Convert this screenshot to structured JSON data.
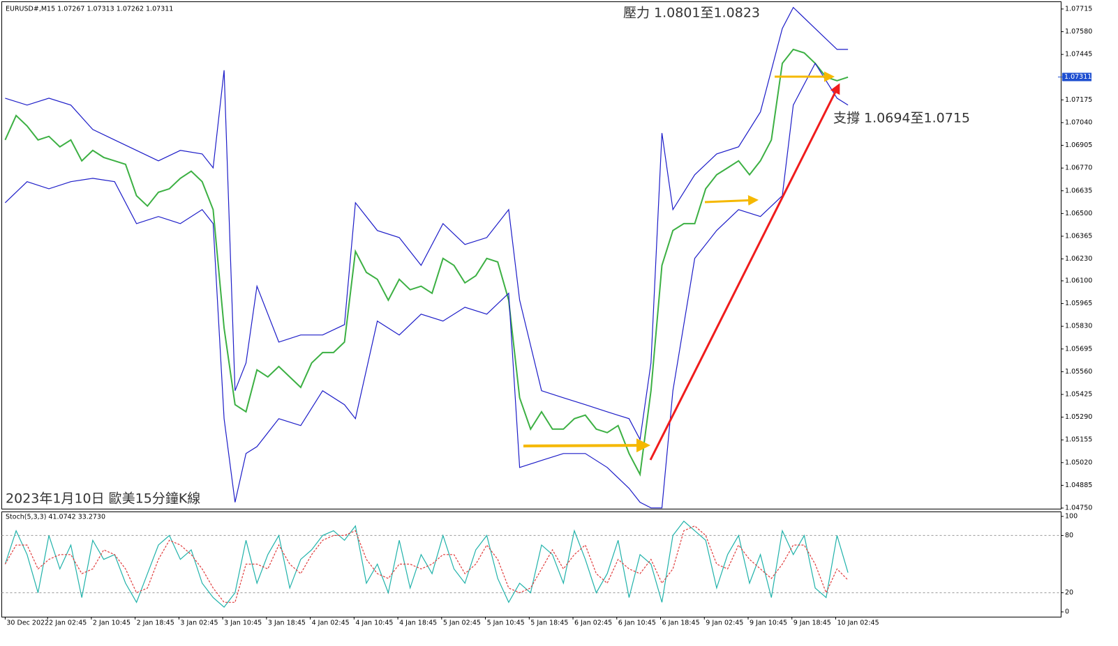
{
  "chart_data": [
    {
      "type": "line",
      "title": "EURUSD#,M15  1.07267 1.07313 1.07262 1.07311",
      "annotations": [
        "壓力 1.0801至1.0823",
        "支撐 1.0694至1.0715",
        "2023年1月10日 歐美15分鐘K線"
      ],
      "xlim": [
        -2.5,
        771.5
      ],
      "ylim": [
        1.04746,
        1.07756
      ],
      "yticks": [
        1.07715,
        {
          "value": 1.0758,
          "label": "1.07580"
        },
        1.07445,
        1.07175,
        {
          "value": 1.0704,
          "label": "1.07040"
        },
        1.06905,
        {
          "value": 1.0677,
          "label": "1.06770"
        },
        1.06635,
        {
          "value": 1.065,
          "label": "1.06500"
        },
        1.06365,
        {
          "value": 1.0623,
          "label": "1.06230"
        },
        {
          "value": 1.061,
          "label": "1.06100"
        },
        1.05965,
        {
          "value": 1.0583,
          "label": "1.05830"
        },
        1.05695,
        {
          "value": 1.0556,
          "label": "1.05560"
        },
        1.05425,
        {
          "value": 1.0529,
          "label": "1.05290"
        },
        1.05155,
        {
          "value": 1.0502,
          "label": "1.05020"
        },
        1.04885,
        {
          "value": 1.0475,
          "label": "1.04750"
        }
      ],
      "last_price": 1.07311,
      "last_price_color": "#1f4fd0",
      "series": [
        {
          "color": "#3cb043",
          "x": [
            0,
            8,
            16,
            24,
            32,
            40,
            48,
            56,
            64,
            72,
            80,
            88,
            96,
            104,
            112,
            120,
            128,
            136,
            144,
            152,
            160,
            168,
            176,
            184,
            192,
            200,
            208,
            216,
            224,
            232,
            240,
            248,
            256,
            264,
            272,
            280,
            288,
            296,
            304,
            312,
            320,
            328,
            336,
            344,
            352,
            360,
            368,
            376,
            384,
            392,
            400,
            408,
            416,
            424,
            432,
            440,
            448,
            456,
            464,
            472,
            480,
            488,
            496,
            504,
            512,
            520,
            528,
            536,
            544,
            552,
            560,
            568,
            576,
            584,
            592,
            600,
            608,
            616
          ],
          "values": [
            1.06937,
            1.07082,
            1.0702,
            1.06937,
            1.06958,
            1.06896,
            1.06937,
            1.06813,
            1.06875,
            1.06833,
            1.06813,
            1.06792,
            1.06606,
            1.06544,
            1.06626,
            1.06647,
            1.06709,
            1.06751,
            1.06689,
            1.06523,
            1.05819,
            1.05364,
            1.05322,
            1.05571,
            1.05529,
            1.05591,
            1.05529,
            1.05467,
            1.05612,
            1.05674,
            1.05674,
            1.05736,
            1.06275,
            1.0615,
            1.06109,
            1.05985,
            1.06109,
            1.06047,
            1.06068,
            1.06026,
            1.06233,
            1.06192,
            1.06088,
            1.0613,
            1.06233,
            1.06212,
            1.05985,
            1.05405,
            1.05219,
            1.05322,
            1.05219,
            1.05219,
            1.05281,
            1.05302,
            1.05219,
            1.05198,
            1.0524,
            1.05074,
            1.0495,
            1.05447,
            1.06192,
            1.06399,
            1.0644,
            1.0644,
            1.06647,
            1.0673,
            1.06771,
            1.06813,
            1.0673,
            1.06813,
            1.06937,
            1.07392,
            1.07475,
            1.07454,
            1.07392,
            1.0731,
            1.07289,
            1.0731
          ]
        },
        {
          "color": "#1c1cc8",
          "x": [
            0,
            16,
            32,
            48,
            64,
            80,
            96,
            112,
            128,
            144,
            152,
            160,
            168,
            176,
            184,
            200,
            216,
            232,
            248,
            256,
            272,
            288,
            304,
            320,
            336,
            352,
            368,
            376,
            392,
            408,
            424,
            440,
            456,
            464,
            472,
            480,
            488,
            504,
            520,
            536,
            552,
            568,
            576,
            592,
            608,
            616
          ],
          "values": [
            1.07185,
            1.07144,
            1.07185,
            1.07144,
            1.06999,
            1.06937,
            1.06875,
            1.06813,
            1.06875,
            1.06854,
            1.06771,
            1.07351,
            1.05447,
            1.05612,
            1.06068,
            1.05736,
            1.05778,
            1.05778,
            1.0584,
            1.06564,
            1.06399,
            1.06357,
            1.06192,
            1.0644,
            1.06316,
            1.06357,
            1.06523,
            1.05985,
            1.05447,
            1.05405,
            1.05364,
            1.05322,
            1.05281,
            1.05157,
            1.05612,
            1.06978,
            1.06523,
            1.0673,
            1.06854,
            1.06896,
            1.07103,
            1.07599,
            1.07724,
            1.07599,
            1.07475,
            1.07475
          ]
        },
        {
          "color": "#1c1cc8",
          "x": [
            0,
            16,
            32,
            48,
            64,
            80,
            96,
            112,
            128,
            144,
            152,
            160,
            168,
            176,
            184,
            200,
            216,
            232,
            248,
            256,
            272,
            288,
            304,
            320,
            336,
            352,
            368,
            376,
            392,
            408,
            424,
            440,
            456,
            464,
            472,
            480,
            488,
            504,
            520,
            536,
            552,
            568,
            576,
            592,
            608,
            616
          ],
          "values": [
            1.06564,
            1.06689,
            1.06647,
            1.06689,
            1.06709,
            1.06689,
            1.0644,
            1.06482,
            1.0644,
            1.06523,
            1.0644,
            1.05281,
            1.04784,
            1.05074,
            1.05115,
            1.05281,
            1.0524,
            1.05447,
            1.05364,
            1.05281,
            1.05861,
            1.05778,
            1.05902,
            1.05861,
            1.05943,
            1.05902,
            1.06026,
            1.04991,
            1.05033,
            1.05074,
            1.05074,
            1.04991,
            1.04867,
            1.04784,
            1.04751,
            1.04751,
            1.05447,
            1.06233,
            1.06399,
            1.06523,
            1.06482,
            1.06606,
            1.07144,
            1.07392,
            1.07185,
            1.07144
          ]
        }
      ]
    },
    {
      "type": "line",
      "title": "Stoch(5,3,3) 41.0742 33.2730",
      "xlim": [
        -2.5,
        771.5
      ],
      "xticks": [
        {
          "value": 0,
          "label": "30 Dec 2022"
        },
        {
          "value": 31,
          "label": "2 Jan 02:45"
        },
        {
          "value": 63,
          "label": "2 Jan 10:45"
        },
        {
          "value": 95,
          "label": "2 Jan 18:45"
        },
        {
          "value": 127,
          "label": "3 Jan 02:45"
        },
        {
          "value": 159,
          "label": "3 Jan 10:45"
        },
        {
          "value": 191,
          "label": "3 Jan 18:45"
        },
        {
          "value": 223,
          "label": "4 Jan 02:45"
        },
        {
          "value": 255,
          "label": "4 Jan 10:45"
        },
        {
          "value": 287,
          "label": "4 Jan 18:45"
        },
        {
          "value": 319,
          "label": "5 Jan 02:45"
        },
        {
          "value": 351,
          "label": "5 Jan 10:45"
        },
        {
          "value": 383,
          "label": "5 Jan 18:45"
        },
        {
          "value": 415,
          "label": "6 Jan 02:45"
        },
        {
          "value": 447,
          "label": "6 Jan 10:45"
        },
        {
          "value": 479,
          "label": "6 Jan 18:45"
        },
        {
          "value": 511,
          "label": "9 Jan 02:45"
        },
        {
          "value": 543,
          "label": "9 Jan 10:45"
        },
        {
          "value": 575,
          "label": "9 Jan 18:45"
        },
        {
          "value": 607,
          "label": "10 Jan 02:45"
        }
      ],
      "ylim": [
        -5.1,
        104.4
      ],
      "yticks": [
        100,
        80,
        20,
        0
      ],
      "levels": [
        80,
        20
      ],
      "series": [
        {
          "color": "#20b2aa",
          "x": [
            0,
            8,
            16,
            24,
            32,
            40,
            48,
            56,
            64,
            72,
            80,
            88,
            96,
            104,
            112,
            120,
            128,
            136,
            144,
            152,
            160,
            168,
            176,
            184,
            192,
            200,
            208,
            216,
            224,
            232,
            240,
            248,
            256,
            264,
            272,
            280,
            288,
            296,
            304,
            312,
            320,
            328,
            336,
            344,
            352,
            360,
            368,
            376,
            384,
            392,
            400,
            408,
            416,
            424,
            432,
            440,
            448,
            456,
            464,
            472,
            480,
            488,
            496,
            504,
            512,
            520,
            528,
            536,
            544,
            552,
            560,
            568,
            576,
            584,
            592,
            600,
            608,
            616
          ],
          "values": [
            50,
            85,
            60,
            20,
            80,
            45,
            70,
            15,
            75,
            55,
            60,
            30,
            10,
            40,
            70,
            80,
            55,
            65,
            30,
            15,
            5,
            20,
            75,
            30,
            60,
            80,
            25,
            55,
            65,
            80,
            85,
            75,
            90,
            30,
            50,
            20,
            75,
            25,
            60,
            40,
            80,
            45,
            30,
            65,
            80,
            35,
            10,
            30,
            20,
            70,
            60,
            30,
            85,
            55,
            20,
            40,
            75,
            15,
            60,
            50,
            10,
            80,
            95,
            85,
            75,
            25,
            60,
            80,
            30,
            60,
            15,
            85,
            60,
            80,
            25,
            15,
            80,
            41.0742
          ]
        },
        {
          "color": "#e03c3c",
          "dashed": true,
          "x": [
            0,
            8,
            16,
            24,
            32,
            40,
            48,
            56,
            64,
            72,
            80,
            88,
            96,
            104,
            112,
            120,
            128,
            136,
            144,
            152,
            160,
            168,
            176,
            184,
            192,
            200,
            208,
            216,
            224,
            232,
            240,
            248,
            256,
            264,
            272,
            280,
            288,
            296,
            304,
            312,
            320,
            328,
            336,
            344,
            352,
            360,
            368,
            376,
            384,
            392,
            400,
            408,
            416,
            424,
            432,
            440,
            448,
            456,
            464,
            472,
            480,
            488,
            496,
            504,
            512,
            520,
            528,
            536,
            544,
            552,
            560,
            568,
            576,
            584,
            592,
            600,
            608,
            616
          ],
          "values": [
            50,
            70,
            70,
            45,
            55,
            60,
            60,
            40,
            45,
            65,
            60,
            45,
            20,
            25,
            55,
            75,
            70,
            60,
            45,
            25,
            10,
            10,
            50,
            50,
            45,
            70,
            50,
            40,
            60,
            75,
            80,
            80,
            85,
            55,
            40,
            35,
            50,
            50,
            45,
            50,
            60,
            60,
            40,
            50,
            70,
            55,
            25,
            20,
            25,
            45,
            65,
            45,
            60,
            70,
            40,
            30,
            55,
            45,
            40,
            55,
            30,
            45,
            85,
            90,
            80,
            50,
            45,
            70,
            55,
            45,
            35,
            50,
            70,
            70,
            50,
            20,
            45,
            33.273
          ]
        }
      ]
    }
  ]
}
